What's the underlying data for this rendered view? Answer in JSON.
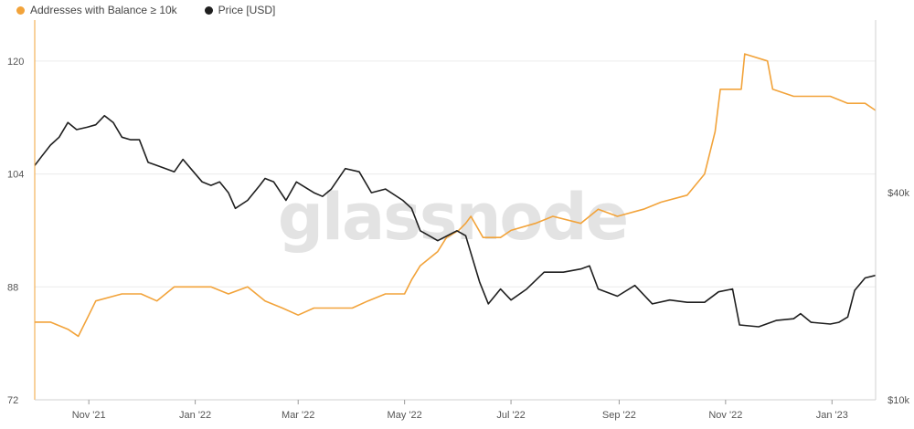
{
  "legend": {
    "series1_label": "Addresses with Balance ≥ 10k",
    "series2_label": "Price [USD]"
  },
  "colors": {
    "addresses": "#f2a33a",
    "price": "#1f1f1f",
    "grid": "#ececec",
    "axis": "#d0d0d0"
  },
  "watermark": "glassnode",
  "chart_data": {
    "type": "line",
    "x_tick_labels": [
      "Nov '21",
      "Jan '22",
      "Mar '22",
      "May '22",
      "Jul '22",
      "Sep '22",
      "Nov '22",
      "Jan '23"
    ],
    "x_ticks": [
      "2021-11-01",
      "2022-01-01",
      "2022-03-01",
      "2022-05-01",
      "2022-07-01",
      "2022-09-01",
      "2022-11-01",
      "2023-01-01"
    ],
    "x_range": [
      "2021-10-01",
      "2023-01-26"
    ],
    "y_left": {
      "ticks": [
        72,
        88,
        104,
        120
      ],
      "tick_labels": [
        "72",
        "88",
        "104",
        "120"
      ],
      "range": [
        72,
        125.8
      ]
    },
    "y_right": {
      "scale": "log",
      "ticks": [
        10000,
        40000
      ],
      "tick_labels": [
        "$10k",
        "$40k"
      ],
      "range": [
        10000,
        127000
      ]
    },
    "series": [
      {
        "name": "Addresses with Balance ≥ 10k",
        "axis": "left",
        "color": "#f2a33a",
        "points": [
          [
            "2021-10-01",
            83
          ],
          [
            "2021-10-10",
            83
          ],
          [
            "2021-10-20",
            82
          ],
          [
            "2021-10-26",
            81
          ],
          [
            "2021-11-01",
            84
          ],
          [
            "2021-11-05",
            86
          ],
          [
            "2021-11-20",
            87
          ],
          [
            "2021-12-01",
            87
          ],
          [
            "2021-12-10",
            86
          ],
          [
            "2021-12-20",
            88
          ],
          [
            "2021-12-31",
            88
          ],
          [
            "2022-01-10",
            88
          ],
          [
            "2022-01-20",
            87
          ],
          [
            "2022-01-31",
            88
          ],
          [
            "2022-02-10",
            86
          ],
          [
            "2022-02-20",
            85
          ],
          [
            "2022-03-01",
            84
          ],
          [
            "2022-03-10",
            85
          ],
          [
            "2022-03-20",
            85
          ],
          [
            "2022-04-01",
            85
          ],
          [
            "2022-04-10",
            86
          ],
          [
            "2022-04-20",
            87
          ],
          [
            "2022-05-01",
            87
          ],
          [
            "2022-05-05",
            89
          ],
          [
            "2022-05-10",
            91
          ],
          [
            "2022-05-20",
            93
          ],
          [
            "2022-05-25",
            95
          ],
          [
            "2022-06-01",
            96
          ],
          [
            "2022-06-05",
            97
          ],
          [
            "2022-06-08",
            98
          ],
          [
            "2022-06-15",
            95
          ],
          [
            "2022-06-25",
            95
          ],
          [
            "2022-07-01",
            96
          ],
          [
            "2022-07-15",
            97
          ],
          [
            "2022-07-25",
            98
          ],
          [
            "2022-08-10",
            97
          ],
          [
            "2022-08-20",
            99
          ],
          [
            "2022-08-31",
            98
          ],
          [
            "2022-09-15",
            99
          ],
          [
            "2022-09-25",
            100
          ],
          [
            "2022-10-10",
            101
          ],
          [
            "2022-10-20",
            104
          ],
          [
            "2022-10-26",
            110
          ],
          [
            "2022-10-29",
            116
          ],
          [
            "2022-11-10",
            116
          ],
          [
            "2022-11-12",
            121
          ],
          [
            "2022-11-25",
            120
          ],
          [
            "2022-11-28",
            116
          ],
          [
            "2022-12-10",
            115
          ],
          [
            "2022-12-20",
            115
          ],
          [
            "2022-12-31",
            115
          ],
          [
            "2023-01-10",
            114
          ],
          [
            "2023-01-20",
            114
          ],
          [
            "2023-01-26",
            113
          ]
        ]
      },
      {
        "name": "Price [USD]",
        "axis": "right",
        "color": "#1f1f1f",
        "points": [
          [
            "2021-10-01",
            48000
          ],
          [
            "2021-10-05",
            51000
          ],
          [
            "2021-10-10",
            55000
          ],
          [
            "2021-10-15",
            58000
          ],
          [
            "2021-10-20",
            64000
          ],
          [
            "2021-10-25",
            61000
          ],
          [
            "2021-10-31",
            62000
          ],
          [
            "2021-11-05",
            63000
          ],
          [
            "2021-11-10",
            67000
          ],
          [
            "2021-11-15",
            64000
          ],
          [
            "2021-11-20",
            58000
          ],
          [
            "2021-11-25",
            57000
          ],
          [
            "2021-11-30",
            57000
          ],
          [
            "2021-12-05",
            49000
          ],
          [
            "2021-12-10",
            48000
          ],
          [
            "2021-12-15",
            47000
          ],
          [
            "2021-12-20",
            46000
          ],
          [
            "2021-12-25",
            50000
          ],
          [
            "2021-12-31",
            46000
          ],
          [
            "2022-01-05",
            43000
          ],
          [
            "2022-01-10",
            42000
          ],
          [
            "2022-01-15",
            43000
          ],
          [
            "2022-01-20",
            40000
          ],
          [
            "2022-01-24",
            36000
          ],
          [
            "2022-01-31",
            38000
          ],
          [
            "2022-02-07",
            42000
          ],
          [
            "2022-02-10",
            44000
          ],
          [
            "2022-02-15",
            43000
          ],
          [
            "2022-02-22",
            38000
          ],
          [
            "2022-02-28",
            43000
          ],
          [
            "2022-03-10",
            40000
          ],
          [
            "2022-03-15",
            39000
          ],
          [
            "2022-03-20",
            41000
          ],
          [
            "2022-03-28",
            47000
          ],
          [
            "2022-04-05",
            46000
          ],
          [
            "2022-04-12",
            40000
          ],
          [
            "2022-04-20",
            41000
          ],
          [
            "2022-04-30",
            38000
          ],
          [
            "2022-05-05",
            36000
          ],
          [
            "2022-05-10",
            31000
          ],
          [
            "2022-05-15",
            30000
          ],
          [
            "2022-05-20",
            29000
          ],
          [
            "2022-05-31",
            31000
          ],
          [
            "2022-06-05",
            30000
          ],
          [
            "2022-06-13",
            22000
          ],
          [
            "2022-06-18",
            19000
          ],
          [
            "2022-06-25",
            21000
          ],
          [
            "2022-07-01",
            19500
          ],
          [
            "2022-07-10",
            21000
          ],
          [
            "2022-07-20",
            23500
          ],
          [
            "2022-07-31",
            23500
          ],
          [
            "2022-08-10",
            24000
          ],
          [
            "2022-08-15",
            24500
          ],
          [
            "2022-08-20",
            21000
          ],
          [
            "2022-08-31",
            20000
          ],
          [
            "2022-09-10",
            21500
          ],
          [
            "2022-09-20",
            19000
          ],
          [
            "2022-09-30",
            19500
          ],
          [
            "2022-10-10",
            19200
          ],
          [
            "2022-10-20",
            19200
          ],
          [
            "2022-10-28",
            20600
          ],
          [
            "2022-11-05",
            21000
          ],
          [
            "2022-11-09",
            16500
          ],
          [
            "2022-11-20",
            16300
          ],
          [
            "2022-11-30",
            17000
          ],
          [
            "2022-12-10",
            17200
          ],
          [
            "2022-12-14",
            17800
          ],
          [
            "2022-12-20",
            16800
          ],
          [
            "2022-12-31",
            16600
          ],
          [
            "2023-01-05",
            16800
          ],
          [
            "2023-01-10",
            17400
          ],
          [
            "2023-01-14",
            20800
          ],
          [
            "2023-01-20",
            22600
          ],
          [
            "2023-01-26",
            23000
          ]
        ]
      }
    ]
  }
}
